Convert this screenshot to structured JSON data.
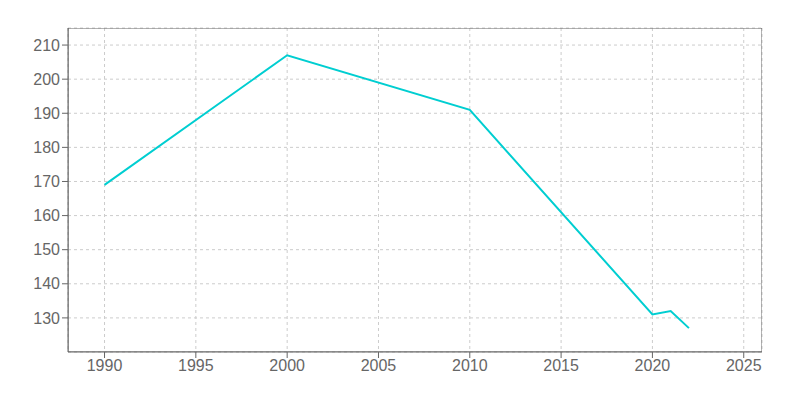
{
  "chart_data": {
    "type": "line",
    "x": [
      1990,
      2000,
      2010,
      2020,
      2021,
      2022
    ],
    "values": [
      169,
      207,
      191,
      131,
      132,
      127
    ],
    "color": "#00CED1",
    "xlim": [
      1988,
      2026
    ],
    "ylim": [
      120,
      215
    ],
    "xticks": [
      1990,
      1995,
      2000,
      2005,
      2010,
      2015,
      2020,
      2025
    ],
    "yticks": [
      130,
      140,
      150,
      160,
      170,
      180,
      190,
      200,
      210
    ],
    "grid": true
  }
}
